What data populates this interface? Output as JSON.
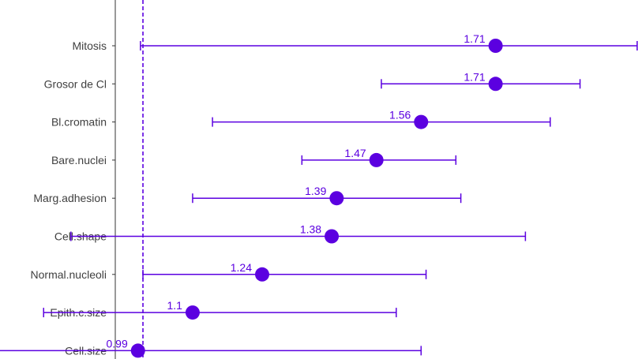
{
  "chart_data": {
    "type": "scatter",
    "subtype": "forest-plot",
    "title": "",
    "xlabel": "",
    "ylabel": "",
    "reference_line": {
      "x": 1.0,
      "style": "dashed"
    },
    "xlim": [
      0.9443,
      1.9967
    ],
    "grid": false,
    "legend": "none",
    "color": "#5B00E0",
    "axis_color": "#333333",
    "categories": [
      "Mitosis",
      "Grosor de Cl",
      "Bl.cromatin",
      "Bare.nuclei",
      "Marg.adhesion",
      "Cell.shape",
      "Normal.nucleoli",
      "Epith.c.size",
      "Cell.size"
    ],
    "points": [
      {
        "category": "Mitosis",
        "estimate": 1.71,
        "label": "1.71",
        "lower": 0.995,
        "upper": 1.995
      },
      {
        "category": "Grosor de Cl",
        "estimate": 1.71,
        "label": "1.71",
        "lower": 1.48,
        "upper": 1.88
      },
      {
        "category": "Bl.cromatin",
        "estimate": 1.56,
        "label": "1.56",
        "lower": 1.14,
        "upper": 1.82
      },
      {
        "category": "Bare.nuclei",
        "estimate": 1.47,
        "label": "1.47",
        "lower": 1.32,
        "upper": 1.63
      },
      {
        "category": "Marg.adhesion",
        "estimate": 1.39,
        "label": "1.39",
        "lower": 1.1,
        "upper": 1.64
      },
      {
        "category": "Cell.shape",
        "estimate": 1.38,
        "label": "1.38",
        "lower": 0.855,
        "upper": 1.77
      },
      {
        "category": "Normal.nucleoli",
        "estimate": 1.24,
        "label": "1.24",
        "lower": 1.0,
        "upper": 1.57
      },
      {
        "category": "Epith.c.size",
        "estimate": 1.1,
        "label": "1.1",
        "lower": 0.8,
        "upper": 1.51
      },
      {
        "category": "Cell.size",
        "estimate": 0.99,
        "label": "0.99",
        "lower": 0.63,
        "upper": 1.56
      }
    ]
  }
}
